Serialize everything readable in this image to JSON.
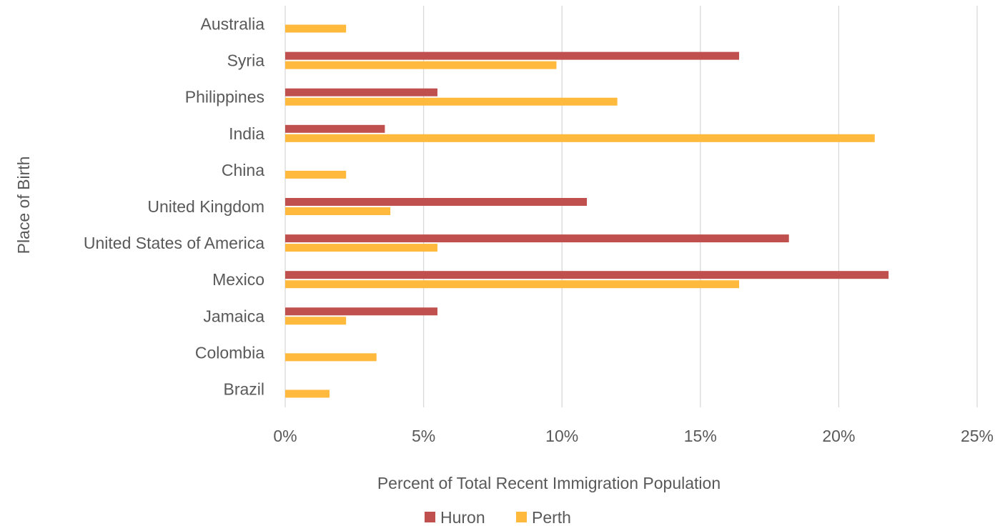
{
  "chart_data": {
    "type": "bar",
    "orientation": "horizontal",
    "title": "",
    "xlabel": "Percent of Total Recent Immigration Population",
    "ylabel": "Place of Birth",
    "xlim": [
      0,
      25
    ],
    "xticks": [
      0,
      5,
      10,
      15,
      20,
      25
    ],
    "xtick_labels": [
      "0%",
      "5%",
      "10%",
      "15%",
      "20%",
      "25%"
    ],
    "grid": "vertical",
    "legend_position": "bottom",
    "categories": [
      "Australia",
      "Syria",
      "Philippines",
      "India",
      "China",
      "United Kingdom",
      "United States of America",
      "Mexico",
      "Jamaica",
      "Colombia",
      "Brazil"
    ],
    "series": [
      {
        "name": "Huron",
        "color": "#C0504D",
        "values": [
          0,
          16.4,
          5.5,
          3.6,
          0,
          10.9,
          18.2,
          21.8,
          5.5,
          0,
          0
        ]
      },
      {
        "name": "Perth",
        "color": "#FFB93C",
        "values": [
          2.2,
          9.8,
          12.0,
          21.3,
          2.2,
          3.8,
          5.5,
          16.4,
          2.2,
          3.3,
          1.6
        ]
      }
    ]
  }
}
